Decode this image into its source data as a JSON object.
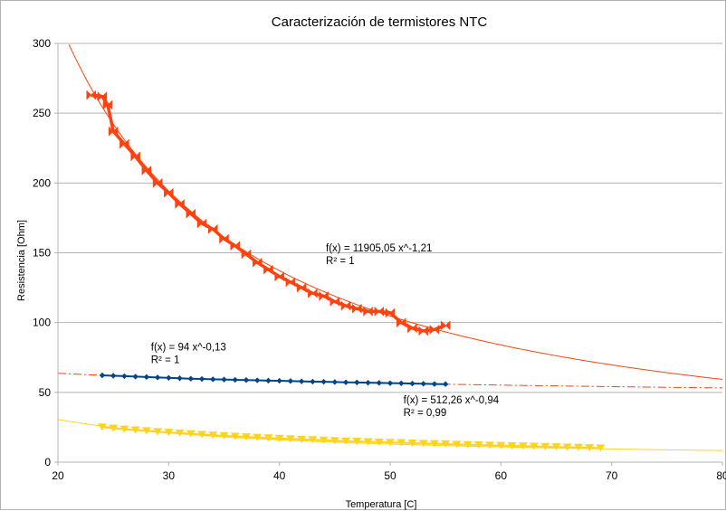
{
  "chart_data": {
    "type": "line",
    "title": "Caracterización de termistores NTC",
    "xlabel": "Temperatura [C]",
    "ylabel": "Resistencia [Ohm]",
    "xlim": [
      20,
      80
    ],
    "ylim": [
      0,
      300
    ],
    "xticks": [
      20,
      30,
      40,
      50,
      60,
      70,
      80
    ],
    "yticks": [
      0,
      50,
      100,
      150,
      200,
      250,
      300
    ],
    "grid": "horizontal",
    "colors": {
      "red": "#ff420e",
      "navy": "#004586",
      "yellow": "#ffd320",
      "frame": "#b3b3b3"
    },
    "series": [
      {
        "color": "#ff420e",
        "marker": "bowtie",
        "x": [
          23,
          24,
          24.5,
          25,
          26,
          27,
          28,
          29,
          30,
          31,
          32,
          33,
          34,
          35,
          36,
          37,
          38,
          39,
          40,
          41,
          42,
          43,
          44,
          45,
          46,
          47,
          48,
          49,
          50,
          51,
          52,
          53,
          54,
          55
        ],
        "values": [
          263,
          262,
          256,
          237,
          228,
          219,
          209,
          200,
          193,
          185,
          178,
          171,
          167,
          160,
          155,
          149,
          143,
          138,
          133,
          129,
          125,
          121,
          119,
          115,
          112,
          110,
          108,
          108,
          107,
          100,
          96,
          94,
          95,
          98
        ]
      },
      {
        "color": "#004586",
        "marker": "diamond",
        "x": [
          24,
          25,
          26,
          27,
          28,
          29,
          30,
          31,
          32,
          33,
          34,
          35,
          36,
          37,
          38,
          39,
          40,
          41,
          42,
          43,
          44,
          45,
          46,
          47,
          48,
          49,
          50,
          51,
          52,
          53,
          54,
          55
        ],
        "values": [
          62.2,
          61.9,
          61.6,
          61.3,
          61.0,
          60.7,
          60.4,
          60.1,
          59.8,
          59.6,
          59.4,
          59.2,
          59.0,
          58.8,
          58.6,
          58.4,
          58.3,
          58.1,
          57.9,
          57.7,
          57.6,
          57.4,
          57.2,
          57.1,
          56.9,
          56.8,
          56.6,
          56.5,
          56.3,
          56.2,
          56.0,
          55.9
        ]
      },
      {
        "color": "#ffd320",
        "marker": "triangle-down",
        "x": [
          24,
          25,
          26,
          27,
          28,
          29,
          30,
          31,
          32,
          33,
          34,
          35,
          36,
          37,
          38,
          39,
          40,
          41,
          42,
          43,
          44,
          45,
          46,
          47,
          48,
          49,
          50,
          51,
          52,
          53,
          54,
          55,
          56,
          57,
          58,
          59,
          60,
          61,
          62,
          63,
          64,
          65,
          66,
          67,
          68,
          69
        ],
        "values": [
          25,
          24.3,
          23.6,
          23,
          22.4,
          21.8,
          21.3,
          20.8,
          20.3,
          19.8,
          19.3,
          18.9,
          18.5,
          18.1,
          17.7,
          17.3,
          17,
          16.7,
          16.3,
          16,
          15.7,
          15.4,
          15.1,
          14.9,
          14.6,
          14.3,
          14.1,
          13.9,
          13.6,
          13.4,
          13.2,
          13,
          12.7,
          12.5,
          12.3,
          12.1,
          11.9,
          11.7,
          11.5,
          11.3,
          11.1,
          10.9,
          10.7,
          10.5,
          10.3,
          10.1
        ]
      }
    ],
    "trendlines": [
      {
        "color": "#ff420e",
        "dash": "solid",
        "a": 11905.05,
        "b": -1.21,
        "x_range": [
          20,
          80
        ]
      },
      {
        "color": "#ff420e",
        "dash": "dashdot",
        "a": 94,
        "b": -0.13,
        "x_range": [
          20,
          80
        ]
      },
      {
        "color": "#ffd320",
        "dash": "solid",
        "a": 512.26,
        "b": -0.94,
        "x_range": [
          20,
          80
        ]
      }
    ],
    "annotations": [
      {
        "line1": "f(x) = 11905,05 x^-1,21",
        "line2": "R² = 1",
        "x": 44.2,
        "y": 151
      },
      {
        "line1": "f(x) = 94 x^-0,13",
        "line2": "R² = 1",
        "x": 28.4,
        "y": 80
      },
      {
        "line1": "f(x) = 512,26 x^-0,94",
        "line2": "R² = 0,99",
        "x": 51.2,
        "y": 42
      }
    ]
  }
}
